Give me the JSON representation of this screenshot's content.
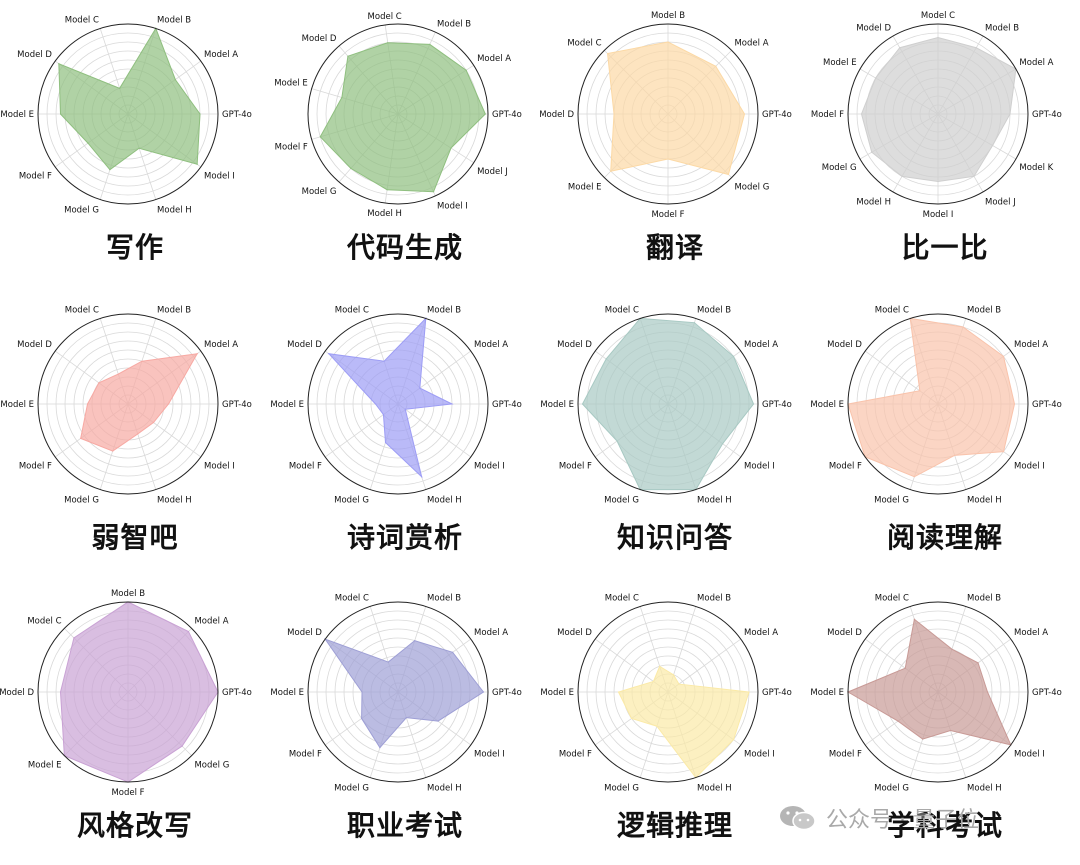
{
  "watermark": {
    "text": "公众号 · 量子位"
  },
  "chart_data": [
    {
      "type": "radar",
      "title": "写作",
      "color": "#8fbf7f",
      "axes": [
        "GPT-4o",
        "Model A",
        "Model B",
        "Model C",
        "Model D",
        "Model E",
        "Model F",
        "Model G",
        "Model H",
        "Model I"
      ],
      "values": [
        0.8,
        0.65,
        1.0,
        0.3,
        0.95,
        0.75,
        0.55,
        0.65,
        0.4,
        0.95
      ],
      "rlim": [
        0,
        1
      ]
    },
    {
      "type": "radar",
      "title": "代码生成",
      "color": "#8fbf7f",
      "axes": [
        "GPT-4o",
        "Model A",
        "Model B",
        "Model C",
        "Model D",
        "Model E",
        "Model F",
        "Model G",
        "Model H",
        "Model I",
        "Model J"
      ],
      "values": [
        0.97,
        0.9,
        0.85,
        0.8,
        0.85,
        0.65,
        0.9,
        0.8,
        0.85,
        0.95,
        0.7
      ],
      "rlim": [
        0,
        1
      ]
    },
    {
      "type": "radar",
      "title": "翻译",
      "color": "#fcd9a5",
      "axes": [
        "GPT-4o",
        "Model A",
        "Model B",
        "Model C",
        "Model D",
        "Model E",
        "Model F",
        "Model G"
      ],
      "values": [
        0.85,
        0.75,
        0.8,
        0.95,
        0.6,
        0.9,
        0.5,
        0.95
      ],
      "rlim": [
        0,
        1
      ]
    },
    {
      "type": "radar",
      "title": "比一比",
      "color": "#cfcfcf",
      "axes": [
        "GPT-4o",
        "Model A",
        "Model B",
        "Model C",
        "Model D",
        "Model E",
        "Model F",
        "Model G",
        "Model H",
        "Model I",
        "Model J",
        "Model K"
      ],
      "values": [
        0.8,
        1.0,
        0.85,
        0.85,
        0.85,
        0.8,
        0.85,
        0.85,
        0.8,
        0.75,
        0.8,
        0.7
      ],
      "rlim": [
        0,
        1
      ]
    },
    {
      "type": "radar",
      "title": "弱智吧",
      "color": "#f7a9a3",
      "axes": [
        "GPT-4o",
        "Model A",
        "Model B",
        "Model C",
        "Model D",
        "Model E",
        "Model F",
        "Model G",
        "Model H",
        "Model I"
      ],
      "values": [
        0.45,
        0.95,
        0.5,
        0.35,
        0.4,
        0.45,
        0.65,
        0.55,
        0.35,
        0.35
      ],
      "rlim": [
        0,
        1
      ]
    },
    {
      "type": "radar",
      "title": "诗词赏析",
      "color": "#9d9df5",
      "axes": [
        "GPT-4o",
        "Model A",
        "Model B",
        "Model C",
        "Model D",
        "Model E",
        "Model F",
        "Model G",
        "Model H",
        "Model I"
      ],
      "values": [
        0.6,
        0.3,
        1.0,
        0.5,
        0.95,
        0.25,
        0.2,
        0.45,
        0.85,
        0.1
      ],
      "rlim": [
        0,
        1
      ]
    },
    {
      "type": "radar",
      "title": "知识问答",
      "color": "#a8c9c3",
      "axes": [
        "GPT-4o",
        "Model A",
        "Model B",
        "Model C",
        "Model D",
        "Model E",
        "Model F",
        "Model G",
        "Model H",
        "Model I"
      ],
      "values": [
        0.95,
        0.9,
        0.95,
        1.0,
        0.85,
        0.95,
        0.7,
        1.0,
        1.0,
        0.75
      ],
      "rlim": [
        0,
        1
      ]
    },
    {
      "type": "radar",
      "title": "阅读理解",
      "color": "#f9c3ab",
      "axes": [
        "GPT-4o",
        "Model A",
        "Model B",
        "Model C",
        "Model D",
        "Model E",
        "Model F",
        "Model G",
        "Model H",
        "Model I"
      ],
      "values": [
        0.85,
        0.9,
        0.9,
        1.0,
        0.25,
        1.0,
        1.0,
        0.85,
        0.6,
        0.9
      ],
      "rlim": [
        0,
        1
      ]
    },
    {
      "type": "radar",
      "title": "风格改写",
      "color": "#c9a2d4",
      "axes": [
        "GPT-4o",
        "Model A",
        "Model B",
        "Model C",
        "Model D",
        "Model E",
        "Model F",
        "Model G"
      ],
      "values": [
        1.0,
        0.95,
        1.0,
        0.85,
        0.75,
        1.0,
        1.0,
        0.85
      ],
      "rlim": [
        0,
        1
      ]
    },
    {
      "type": "radar",
      "title": "职业考试",
      "color": "#9e9fd5",
      "axes": [
        "GPT-4o",
        "Model A",
        "Model B",
        "Model C",
        "Model D",
        "Model E",
        "Model F",
        "Model G",
        "Model H",
        "Model I"
      ],
      "values": [
        0.95,
        0.75,
        0.6,
        0.35,
        1.0,
        0.4,
        0.5,
        0.65,
        0.3,
        0.55
      ],
      "rlim": [
        0,
        1
      ]
    },
    {
      "type": "radar",
      "title": "逻辑推理",
      "color": "#fbeaa7",
      "axes": [
        "GPT-4o",
        "Model A",
        "Model B",
        "Model C",
        "Model D",
        "Model E",
        "Model F",
        "Model G",
        "Model H",
        "Model I"
      ],
      "values": [
        0.9,
        0.15,
        0.2,
        0.3,
        0.2,
        0.55,
        0.5,
        0.4,
        1.0,
        0.9
      ],
      "rlim": [
        0,
        1
      ]
    },
    {
      "type": "radar",
      "title": "学科考试",
      "color": "#c89a96",
      "axes": [
        "GPT-4o",
        "Model A",
        "Model B",
        "Model C",
        "Model D",
        "Model E",
        "Model F",
        "Model G",
        "Model H",
        "Model I"
      ],
      "values": [
        0.55,
        0.55,
        0.5,
        0.85,
        0.45,
        1.0,
        0.55,
        0.55,
        0.45,
        1.0
      ],
      "rlim": [
        0,
        1
      ]
    }
  ]
}
